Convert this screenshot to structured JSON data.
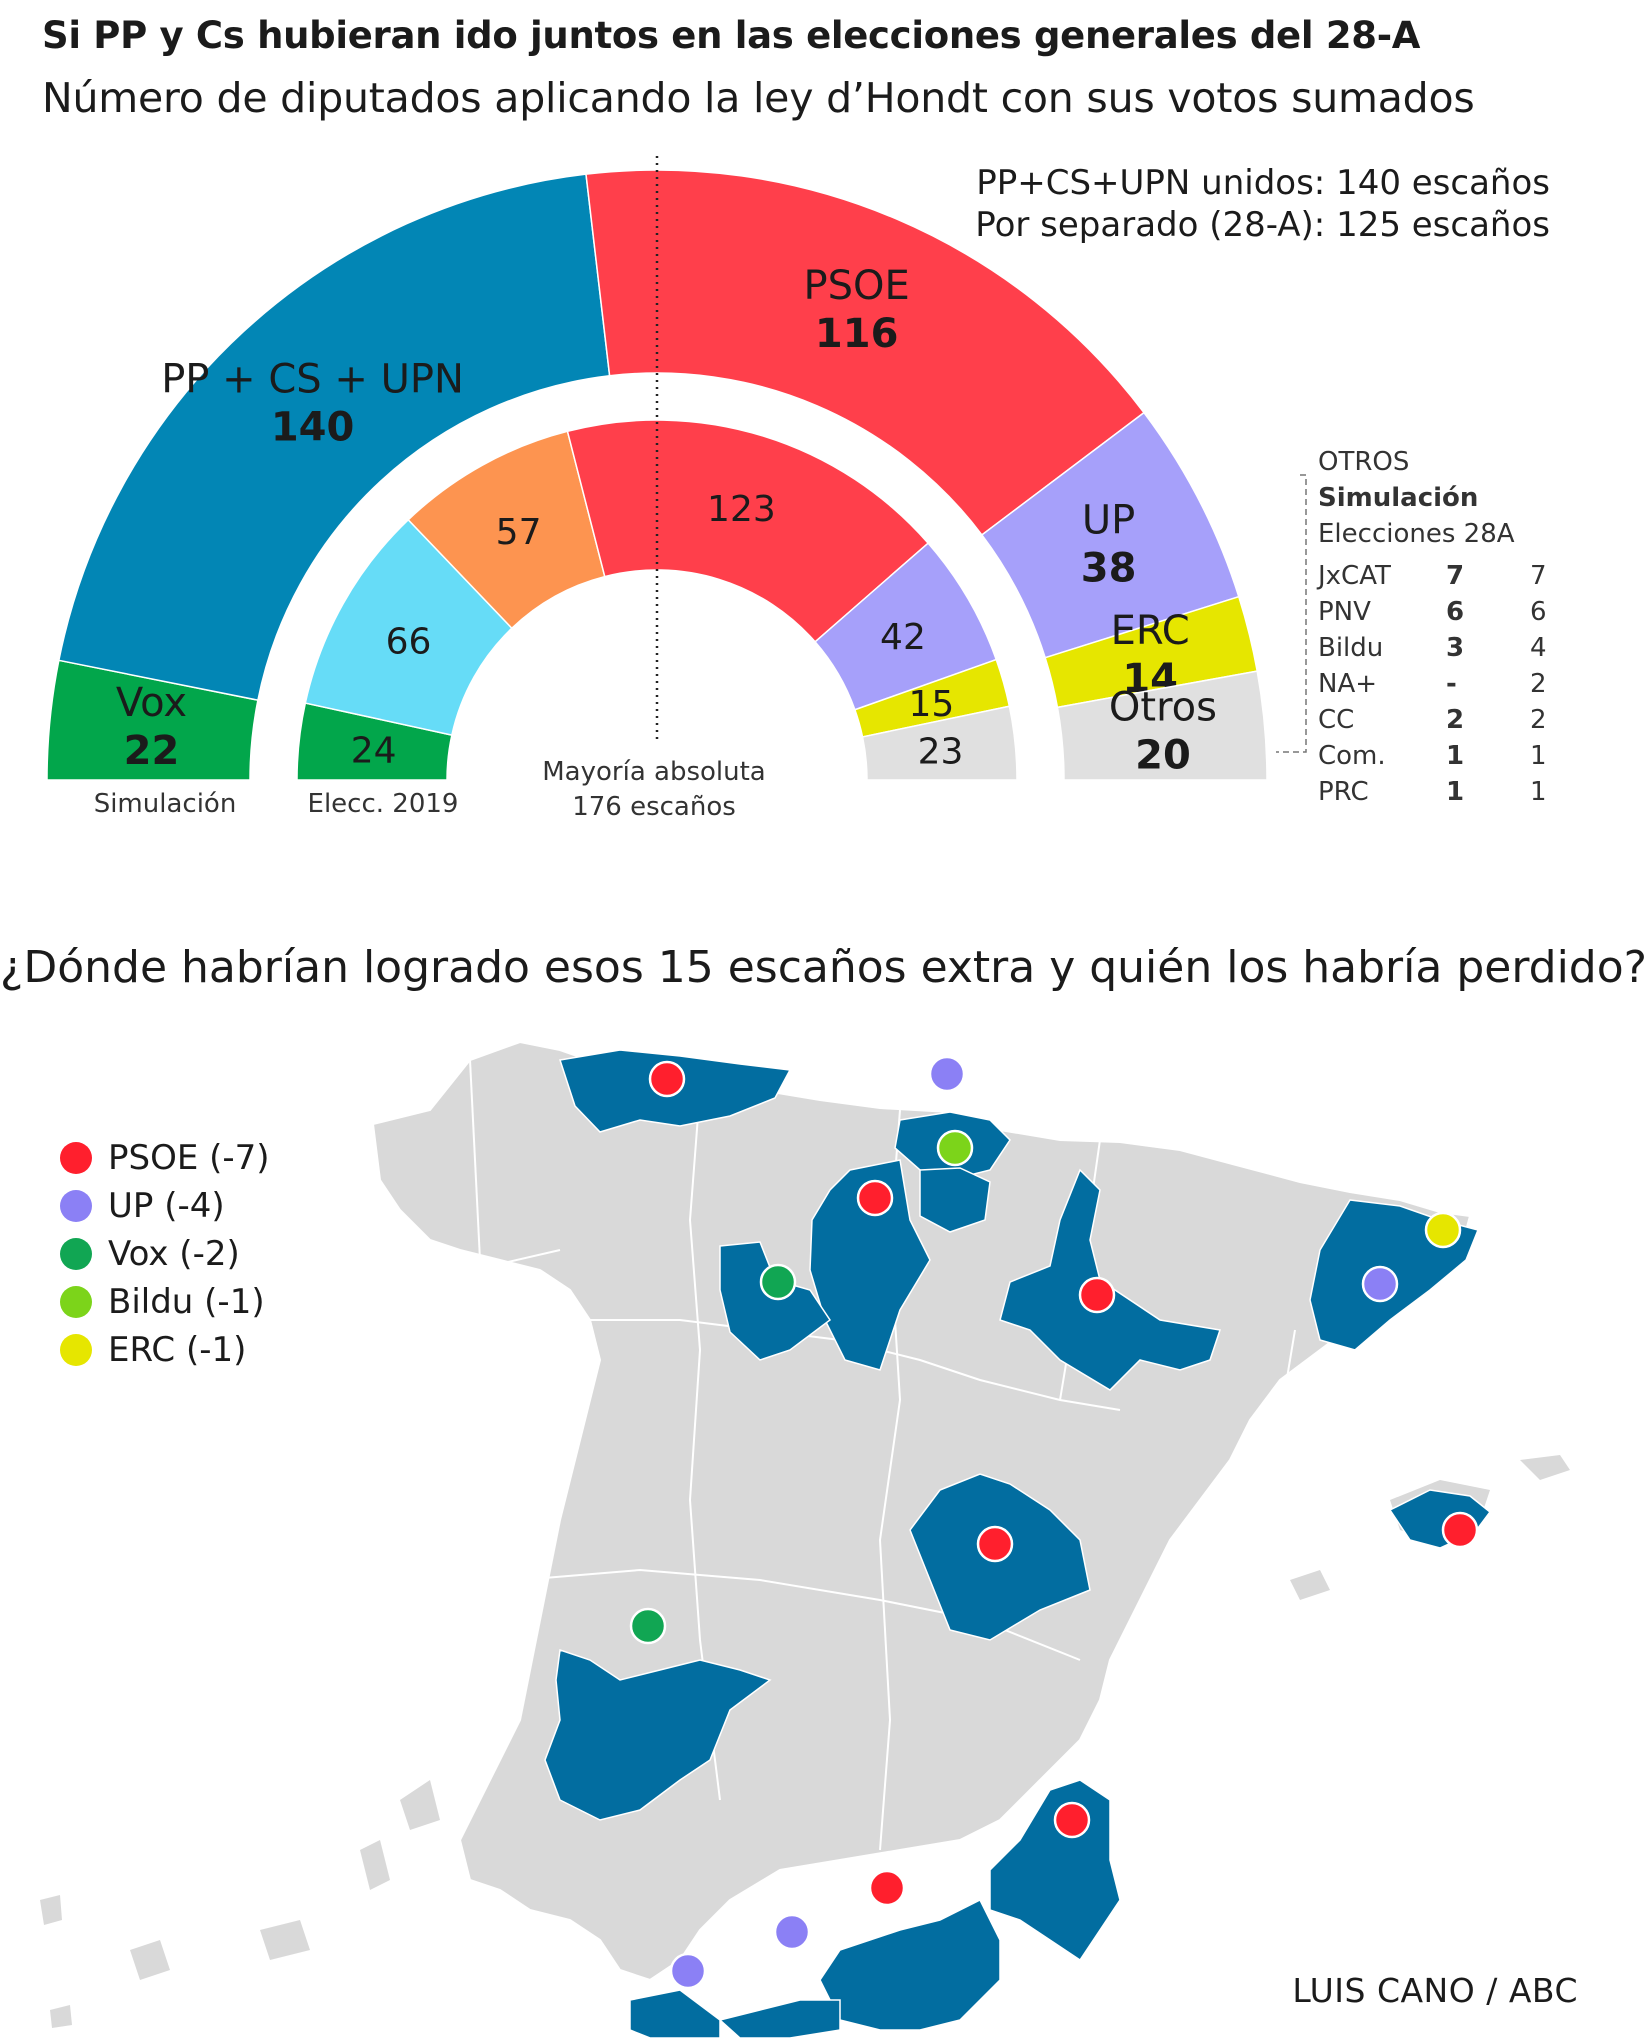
{
  "header": {
    "title": "Si PP y Cs hubieran ido juntos en las elecciones generales del 28-A",
    "subtitle": "Número de diputados aplicando la ley d’Hondt con sus votos sumados"
  },
  "summary": {
    "line1": "PP+CS+UPN unidos: 140 escaños",
    "line2": "Por separado (28-A): 125 escaños"
  },
  "chart_data": [
    {
      "type": "pie",
      "name": "Simulación",
      "categories": [
        "Vox",
        "PP + CS + UPN",
        "PSOE",
        "UP",
        "ERC",
        "Otros"
      ],
      "values": [
        22,
        140,
        116,
        38,
        14,
        20
      ],
      "colors": [
        "#02a64b",
        "#0286b5",
        "#ff3f4b",
        "#a6a0fa",
        "#e6e600",
        "#e0e0e0"
      ],
      "total": 350
    },
    {
      "type": "pie",
      "name": "Elecc. 2019",
      "values": [
        24,
        66,
        57,
        123,
        42,
        15,
        23
      ],
      "colors": [
        "#02a64b",
        "#66dcf7",
        "#fd9450",
        "#ff3f4b",
        "#a6a0fa",
        "#e6e600",
        "#e0e0e0"
      ],
      "total": 350
    }
  ],
  "labels": {
    "sim": "Simulación",
    "elec": "Elecc. 2019",
    "majority_1": "Mayoría absoluta",
    "majority_2": "176 escaños"
  },
  "otros": {
    "title": "OTROS",
    "col1": "Simulación",
    "col2": "Elecciones 28A",
    "rows": [
      {
        "name": "JxCAT",
        "sim": "7",
        "elec": "7"
      },
      {
        "name": "PNV",
        "sim": "6",
        "elec": "6"
      },
      {
        "name": "Bildu",
        "sim": "3",
        "elec": "4"
      },
      {
        "name": "NA+",
        "sim": "-",
        "elec": "2"
      },
      {
        "name": "CC",
        "sim": "2",
        "elec": "2"
      },
      {
        "name": "Com.",
        "sim": "1",
        "elec": "1"
      },
      {
        "name": "PRC",
        "sim": "1",
        "elec": "1"
      }
    ]
  },
  "map": {
    "question": "¿Dónde habrían logrado esos 15 escaños extra y quién los habría perdido?",
    "legend": [
      {
        "label": "PSOE (-7)",
        "color": "#ff1f2d"
      },
      {
        "label": "UP (-4)",
        "color": "#8b80f5"
      },
      {
        "label": "Vox (-2)",
        "color": "#11a653"
      },
      {
        "label": "Bildu (-1)",
        "color": "#7cd41a"
      },
      {
        "label": "ERC (-1)",
        "color": "#e6e600"
      }
    ],
    "highlight_color": "#026da0",
    "base_color": "#d9d9d9"
  },
  "credit": "LUIS CANO / ABC"
}
